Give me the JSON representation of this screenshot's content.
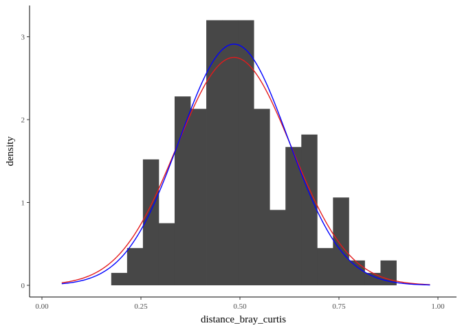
{
  "chart_data": {
    "type": "bar",
    "subtype": "histogram-with-density-curves",
    "xlabel": "distance_bray_curtis",
    "ylabel": "density",
    "xlim": [
      0.0,
      1.0
    ],
    "ylim": [
      0,
      3.3
    ],
    "x_ticks": [
      "0.00",
      "0.25",
      "0.50",
      "0.75",
      "1.00"
    ],
    "y_ticks": [
      "0",
      "1",
      "2",
      "3"
    ],
    "x_tick_values": [
      0.0,
      0.25,
      0.5,
      0.75,
      1.0
    ],
    "y_tick_values": [
      0,
      1,
      2,
      3
    ],
    "grid": false,
    "bar_color": "#474747",
    "bins": [
      {
        "x0": 0.175,
        "x1": 0.215,
        "density": 0.15
      },
      {
        "x0": 0.215,
        "x1": 0.255,
        "density": 0.45
      },
      {
        "x0": 0.255,
        "x1": 0.295,
        "density": 1.52
      },
      {
        "x0": 0.295,
        "x1": 0.335,
        "density": 0.75
      },
      {
        "x0": 0.335,
        "x1": 0.375,
        "density": 2.28
      },
      {
        "x0": 0.375,
        "x1": 0.415,
        "density": 2.13
      },
      {
        "x0": 0.415,
        "x1": 0.455,
        "density": 3.2
      },
      {
        "x0": 0.455,
        "x1": 0.495,
        "density": 3.2
      },
      {
        "x0": 0.495,
        "x1": 0.535,
        "density": 3.2
      },
      {
        "x0": 0.535,
        "x1": 0.575,
        "density": 2.13
      },
      {
        "x0": 0.575,
        "x1": 0.615,
        "density": 0.91
      },
      {
        "x0": 0.615,
        "x1": 0.655,
        "density": 1.67
      },
      {
        "x0": 0.655,
        "x1": 0.695,
        "density": 1.82
      },
      {
        "x0": 0.695,
        "x1": 0.735,
        "density": 0.45
      },
      {
        "x0": 0.735,
        "x1": 0.775,
        "density": 1.06
      },
      {
        "x0": 0.775,
        "x1": 0.815,
        "density": 0.3
      },
      {
        "x0": 0.815,
        "x1": 0.855,
        "density": 0.15
      },
      {
        "x0": 0.855,
        "x1": 0.895,
        "density": 0.3
      }
    ],
    "series": [
      {
        "color": "#e41a1c",
        "type": "normal-curve",
        "mean": 0.485,
        "sd": 0.145,
        "x_range": [
          0.05,
          0.98
        ]
      },
      {
        "color": "#0000ff",
        "type": "normal-curve",
        "mean": 0.485,
        "sd": 0.137,
        "x_range": [
          0.05,
          0.98
        ]
      }
    ]
  }
}
